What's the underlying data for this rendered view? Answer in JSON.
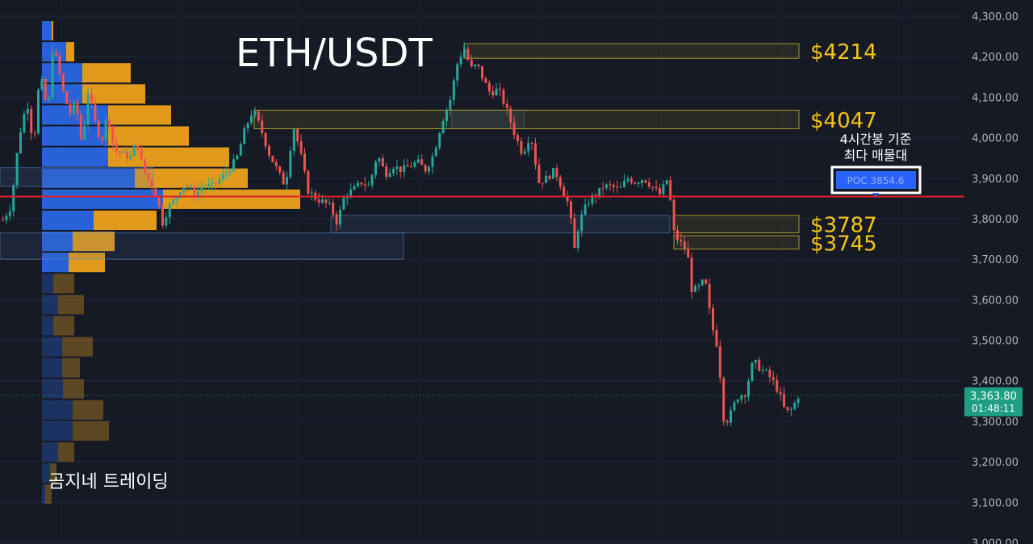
{
  "chart_data": {
    "type": "candlestick",
    "title": "ETH/USDT",
    "watermark_text": "곰지네 트레이딩",
    "y_axis": {
      "ticks": [
        "4,300.00",
        "4,200.00",
        "4,100.00",
        "4,000.00",
        "3,900.00",
        "3,800.00",
        "3,700.00",
        "3,600.00",
        "3,500.00",
        "3,400.00",
        "3,300.00",
        "3,200.00",
        "3,100.00",
        "3,000.00"
      ],
      "tick_values": [
        4300,
        4200,
        4100,
        4000,
        3900,
        3800,
        3700,
        3600,
        3500,
        3400,
        3300,
        3200,
        3100,
        3000
      ],
      "range": [
        2997,
        4345
      ]
    },
    "current_price": {
      "value": 3363.8,
      "label": "3,363.80",
      "countdown": "01:48:11"
    },
    "poc": {
      "value": 3854.6,
      "label": "POC  3854.6",
      "annotation_line1": "4시간봉 기준",
      "annotation_line2": "최다 매물대"
    },
    "zones": [
      {
        "label": "$4214",
        "low": 4196,
        "high": 4232
      },
      {
        "label": "$4047",
        "low": 4022,
        "high": 4068
      },
      {
        "label": "$3787",
        "low": 3765,
        "high": 3808
      },
      {
        "label": "$3745",
        "low": 3725,
        "high": 3758
      }
    ],
    "volume_profile": {
      "bins": [
        {
          "low": 4238,
          "high": 4290,
          "buy": 12,
          "sell": 2
        },
        {
          "low": 4186,
          "high": 4238,
          "buy": 30,
          "sell": 10
        },
        {
          "low": 4134,
          "high": 4186,
          "buy": 50,
          "sell": 60
        },
        {
          "low": 4082,
          "high": 4134,
          "buy": 50,
          "sell": 78
        },
        {
          "low": 4030,
          "high": 4082,
          "buy": 82,
          "sell": 78
        },
        {
          "low": 3978,
          "high": 4030,
          "buy": 82,
          "sell": 100
        },
        {
          "low": 3926,
          "high": 3978,
          "buy": 82,
          "sell": 150
        },
        {
          "low": 3874,
          "high": 3926,
          "buy": 115,
          "sell": 140
        },
        {
          "low": 3822,
          "high": 3874,
          "buy": 150,
          "sell": 170
        },
        {
          "low": 3770,
          "high": 3822,
          "buy": 64,
          "sell": 78
        },
        {
          "low": 3718,
          "high": 3770,
          "buy": 38,
          "sell": 52
        },
        {
          "low": 3666,
          "high": 3718,
          "buy": 33,
          "sell": 45
        },
        {
          "low": 3614,
          "high": 3666,
          "buy": 14,
          "sell": 26
        },
        {
          "low": 3562,
          "high": 3614,
          "buy": 20,
          "sell": 32
        },
        {
          "low": 3510,
          "high": 3562,
          "buy": 14,
          "sell": 26
        },
        {
          "low": 3458,
          "high": 3510,
          "buy": 25,
          "sell": 38
        },
        {
          "low": 3406,
          "high": 3458,
          "buy": 25,
          "sell": 22
        },
        {
          "low": 3354,
          "high": 3406,
          "buy": 26,
          "sell": 26
        },
        {
          "low": 3302,
          "high": 3354,
          "buy": 38,
          "sell": 38
        },
        {
          "low": 3250,
          "high": 3302,
          "buy": 38,
          "sell": 45
        },
        {
          "low": 3198,
          "high": 3250,
          "buy": 20,
          "sell": 20
        },
        {
          "low": 3146,
          "high": 3198,
          "buy": 10,
          "sell": 8
        },
        {
          "low": 3094,
          "high": 3146,
          "buy": 4,
          "sell": 8
        }
      ]
    },
    "price_path": [
      [
        0,
        3790
      ],
      [
        12,
        3830
      ],
      [
        22,
        4000
      ],
      [
        32,
        4090
      ],
      [
        40,
        3980
      ],
      [
        48,
        4160
      ],
      [
        58,
        4060
      ],
      [
        64,
        4230
      ],
      [
        70,
        4180
      ],
      [
        78,
        4100
      ],
      [
        86,
        4060
      ],
      [
        92,
        4090
      ],
      [
        100,
        3980
      ],
      [
        108,
        4120
      ],
      [
        116,
        4040
      ],
      [
        124,
        3990
      ],
      [
        132,
        4060
      ],
      [
        140,
        3970
      ],
      [
        150,
        3960
      ],
      [
        160,
        3950
      ],
      [
        168,
        3990
      ],
      [
        176,
        3920
      ],
      [
        184,
        3890
      ],
      [
        192,
        3860
      ],
      [
        200,
        3790
      ],
      [
        208,
        3830
      ],
      [
        216,
        3850
      ],
      [
        224,
        3880
      ],
      [
        232,
        3880
      ],
      [
        240,
        3860
      ],
      [
        250,
        3880
      ],
      [
        262,
        3880
      ],
      [
        272,
        3900
      ],
      [
        282,
        3920
      ],
      [
        292,
        3950
      ],
      [
        302,
        4020
      ],
      [
        312,
        4070
      ],
      [
        322,
        4020
      ],
      [
        332,
        3960
      ],
      [
        342,
        3920
      ],
      [
        352,
        3880
      ],
      [
        362,
        4030
      ],
      [
        370,
        3970
      ],
      [
        380,
        3870
      ],
      [
        390,
        3850
      ],
      [
        400,
        3840
      ],
      [
        408,
        3830
      ],
      [
        416,
        3790
      ],
      [
        426,
        3860
      ],
      [
        436,
        3870
      ],
      [
        446,
        3890
      ],
      [
        456,
        3880
      ],
      [
        466,
        3960
      ],
      [
        476,
        3910
      ],
      [
        486,
        3930
      ],
      [
        496,
        3920
      ],
      [
        506,
        3930
      ],
      [
        516,
        3940
      ],
      [
        526,
        3920
      ],
      [
        536,
        3960
      ],
      [
        546,
        4040
      ],
      [
        556,
        4090
      ],
      [
        566,
        4190
      ],
      [
        574,
        4220
      ],
      [
        582,
        4170
      ],
      [
        590,
        4180
      ],
      [
        598,
        4140
      ],
      [
        606,
        4110
      ],
      [
        616,
        4120
      ],
      [
        626,
        4070
      ],
      [
        636,
        4010
      ],
      [
        646,
        3960
      ],
      [
        656,
        4010
      ],
      [
        666,
        3890
      ],
      [
        676,
        3900
      ],
      [
        686,
        3920
      ],
      [
        696,
        3870
      ],
      [
        704,
        3830
      ],
      [
        710,
        3720
      ],
      [
        716,
        3790
      ],
      [
        722,
        3820
      ],
      [
        730,
        3850
      ],
      [
        738,
        3860
      ],
      [
        746,
        3880
      ],
      [
        756,
        3880
      ],
      [
        766,
        3870
      ],
      [
        776,
        3900
      ],
      [
        786,
        3890
      ],
      [
        796,
        3900
      ],
      [
        806,
        3880
      ],
      [
        816,
        3860
      ],
      [
        826,
        3900
      ],
      [
        834,
        3760
      ],
      [
        842,
        3740
      ],
      [
        850,
        3720
      ],
      [
        856,
        3620
      ],
      [
        864,
        3630
      ],
      [
        872,
        3650
      ],
      [
        880,
        3540
      ],
      [
        888,
        3480
      ],
      [
        896,
        3290
      ],
      [
        904,
        3320
      ],
      [
        912,
        3360
      ],
      [
        922,
        3370
      ],
      [
        932,
        3450
      ],
      [
        940,
        3430
      ],
      [
        948,
        3420
      ],
      [
        956,
        3400
      ],
      [
        964,
        3370
      ],
      [
        972,
        3320
      ],
      [
        980,
        3330
      ],
      [
        988,
        3363.8
      ]
    ],
    "colors": {
      "background": "#161a25",
      "up": "#26a69a",
      "down": "#ef5350",
      "poc_line": "#e0202a",
      "zone_text": "#f5c518",
      "vp_buy": "#2862d8",
      "vp_sell": "#e29a1c",
      "current_price_badge": "#1f9e83",
      "poc_badge": "#2962ff"
    }
  }
}
